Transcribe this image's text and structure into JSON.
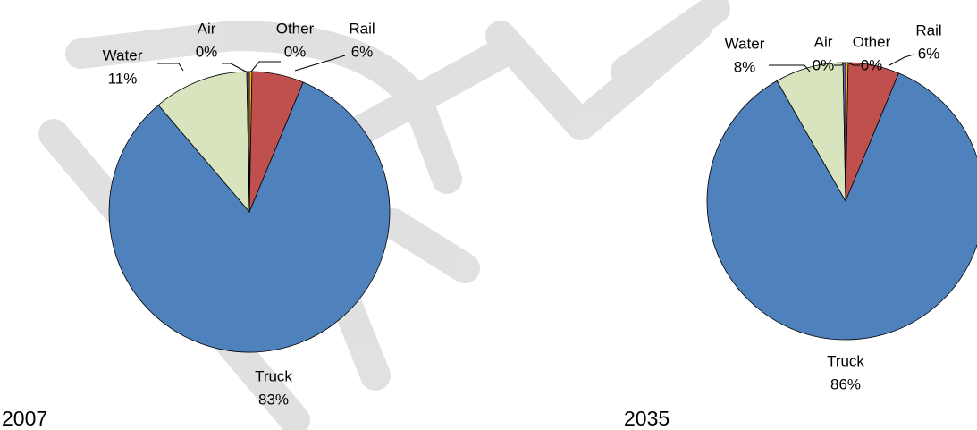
{
  "chart_data": [
    {
      "type": "pie",
      "title": "2007",
      "categories": [
        "Other",
        "Rail",
        "Truck",
        "Water",
        "Air"
      ],
      "values": [
        0.3,
        6,
        83,
        11,
        0.3
      ],
      "value_labels": [
        "0%",
        "6%",
        "83%",
        "11%",
        "0%"
      ],
      "colors": [
        "#f2b600",
        "#c0504d",
        "#4f81bd",
        "#d7e4bd",
        "#8064a2"
      ]
    },
    {
      "type": "pie",
      "title": "2035",
      "categories": [
        "Other",
        "Rail",
        "Truck",
        "Water",
        "Air"
      ],
      "values": [
        0.3,
        6,
        86,
        8,
        0.3
      ],
      "value_labels": [
        "0%",
        "6%",
        "86%",
        "8%",
        "0%"
      ],
      "colors": [
        "#f2b600",
        "#c0504d",
        "#4f81bd",
        "#d7e4bd",
        "#8064a2"
      ]
    }
  ]
}
